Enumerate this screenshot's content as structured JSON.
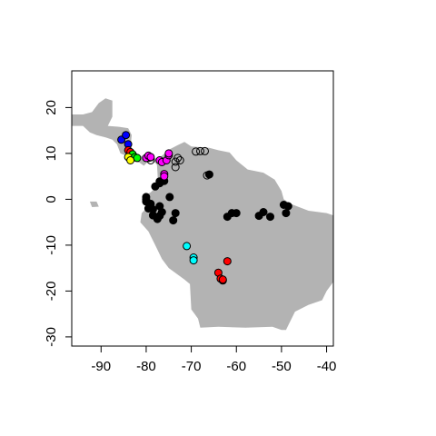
{
  "chart_data": {
    "type": "scatter",
    "title": "",
    "xlabel": "",
    "ylabel": "",
    "xlim": [
      -96.5,
      -38.5
    ],
    "ylim": [
      -32,
      28
    ],
    "x_ticks": [
      -90,
      -80,
      -70,
      -60,
      -50,
      -40
    ],
    "y_ticks": [
      -30,
      -20,
      -10,
      0,
      10,
      20
    ],
    "x_tick_labels": [
      "-90",
      "-80",
      "-70",
      "-60",
      "-50",
      "-40"
    ],
    "y_tick_labels": [
      "-30",
      "-20",
      "-10",
      "0",
      "10",
      "20"
    ],
    "grid": false,
    "legend": "none",
    "background_map_color": "#b3b3b3",
    "land_polygon": [
      [
        -96.5,
        18.5
      ],
      [
        -94,
        18.5
      ],
      [
        -92,
        19
      ],
      [
        -90.5,
        21
      ],
      [
        -89,
        22
      ],
      [
        -87.5,
        21.5
      ],
      [
        -87.5,
        18
      ],
      [
        -88.5,
        16
      ],
      [
        -86,
        15.8
      ],
      [
        -84,
        15.5
      ],
      [
        -83.2,
        14
      ],
      [
        -83.5,
        11
      ],
      [
        -82,
        9.3
      ],
      [
        -79.5,
        9.6
      ],
      [
        -77.5,
        8.8
      ],
      [
        -76.5,
        9.5
      ],
      [
        -75,
        10.8
      ],
      [
        -73,
        11.8
      ],
      [
        -71.5,
        12.5
      ],
      [
        -70,
        11.5
      ],
      [
        -66,
        11.2
      ],
      [
        -64,
        10.7
      ],
      [
        -61.5,
        10.2
      ],
      [
        -60,
        8.5
      ],
      [
        -57.5,
        6.5
      ],
      [
        -54,
        5.8
      ],
      [
        -51.5,
        4.3
      ],
      [
        -50,
        1.8
      ],
      [
        -49.5,
        0
      ],
      [
        -48,
        -1
      ],
      [
        -44,
        -2.5
      ],
      [
        -40,
        -3
      ],
      [
        -38.5,
        -3.5
      ],
      [
        -38.5,
        -18
      ],
      [
        -40,
        -20
      ],
      [
        -41,
        -22
      ],
      [
        -44,
        -23
      ],
      [
        -47,
        -24.5
      ],
      [
        -48.5,
        -27.5
      ],
      [
        -49,
        -28.5
      ],
      [
        -50,
        -28.5
      ],
      [
        -52,
        -27.8
      ],
      [
        -58,
        -28
      ],
      [
        -64,
        -27.8
      ],
      [
        -68,
        -28
      ],
      [
        -68.5,
        -26
      ],
      [
        -70,
        -24
      ],
      [
        -70.3,
        -18.5
      ],
      [
        -71.5,
        -17.5
      ],
      [
        -75,
        -15
      ],
      [
        -76.5,
        -13
      ],
      [
        -78,
        -10
      ],
      [
        -79.5,
        -7
      ],
      [
        -81.3,
        -5
      ],
      [
        -81,
        -3
      ],
      [
        -80,
        -2
      ],
      [
        -80.5,
        0
      ],
      [
        -80,
        1
      ],
      [
        -79,
        1.5
      ],
      [
        -78,
        2.5
      ],
      [
        -77.4,
        4
      ],
      [
        -77.5,
        6
      ],
      [
        -77.6,
        7.5
      ],
      [
        -78,
        8
      ],
      [
        -79.5,
        8.3
      ],
      [
        -80.5,
        7.3
      ],
      [
        -81.5,
        8
      ],
      [
        -83,
        8.3
      ],
      [
        -84,
        9.3
      ],
      [
        -85.7,
        10
      ],
      [
        -86.5,
        12
      ],
      [
        -87.5,
        13
      ],
      [
        -89,
        13.5
      ],
      [
        -91,
        14
      ],
      [
        -92.5,
        14.6
      ],
      [
        -94,
        16
      ],
      [
        -96.5,
        16
      ]
    ],
    "extra_land_patches": [
      [
        [
          -92.5,
          -0.5
        ],
        [
          -91,
          -0.5
        ],
        [
          -90.5,
          -1.6
        ],
        [
          -92,
          -1.7
        ]
      ]
    ],
    "series": [
      {
        "color": "#000000",
        "filled": true,
        "points": [
          [
            -80,
            0
          ],
          [
            -80,
            -0.5
          ],
          [
            -80,
            0.5
          ],
          [
            -79,
            -1
          ],
          [
            -79.5,
            -2
          ],
          [
            -78,
            2.8
          ],
          [
            -77,
            3.5
          ],
          [
            -77,
            3.9
          ],
          [
            -76,
            4
          ],
          [
            -74.8,
            0.5
          ],
          [
            -77,
            -1.5
          ],
          [
            -78.5,
            -2.2
          ],
          [
            -78.5,
            -3.5
          ],
          [
            -77,
            -3.6
          ],
          [
            -76.5,
            -2.8
          ],
          [
            -77.5,
            -4.3
          ],
          [
            -73.5,
            -3
          ],
          [
            -74,
            -4.6
          ],
          [
            -66,
            5.4
          ],
          [
            -62,
            -3.8
          ],
          [
            -61,
            -3
          ],
          [
            -60,
            -3
          ],
          [
            -55,
            -3.6
          ],
          [
            -54,
            -2.8
          ],
          [
            -52.5,
            -3.8
          ],
          [
            -49.5,
            -1.2
          ],
          [
            -48.5,
            -1.5
          ],
          [
            -49,
            -3
          ]
        ]
      },
      {
        "color": "#ffffff",
        "filled": false,
        "points": [
          [
            -73,
            9
          ],
          [
            -72.5,
            8.5
          ],
          [
            -73.5,
            8.2
          ],
          [
            -73.5,
            7
          ],
          [
            -69,
            10.4
          ],
          [
            -68,
            10.5
          ],
          [
            -67,
            10.5
          ],
          [
            -66.5,
            5.2
          ],
          [
            -79,
            8.5
          ],
          [
            -79.5,
            9
          ]
        ]
      },
      {
        "color": "#0000ff",
        "filled": true,
        "points": [
          [
            -85.5,
            13
          ],
          [
            -84.5,
            14
          ],
          [
            -84,
            12
          ]
        ]
      },
      {
        "color": "#ff0000",
        "filled": true,
        "points": [
          [
            -84,
            10.7
          ],
          [
            -83.5,
            10.3
          ],
          [
            -62,
            -13.5
          ],
          [
            -64,
            -16
          ],
          [
            -63.5,
            -17.3
          ],
          [
            -63,
            -17.7
          ],
          [
            -63,
            -17.5
          ]
        ]
      },
      {
        "color": "#00ff00",
        "filled": true,
        "points": [
          [
            -83,
            9.8
          ],
          [
            -82.5,
            9.2
          ],
          [
            -82,
            9
          ]
        ]
      },
      {
        "color": "#ffff00",
        "filled": true,
        "points": [
          [
            -84,
            9.2
          ],
          [
            -83.5,
            8.5
          ]
        ]
      },
      {
        "color": "#ff00ff",
        "filled": true,
        "points": [
          [
            -80,
            9
          ],
          [
            -79.5,
            9.5
          ],
          [
            -79,
            9.2
          ],
          [
            -77,
            8.5
          ],
          [
            -76.5,
            8.1
          ],
          [
            -75.5,
            8.5
          ],
          [
            -75,
            9.6
          ],
          [
            -75,
            10
          ],
          [
            -76,
            5.5
          ],
          [
            -76,
            5
          ]
        ]
      },
      {
        "color": "#00ffff",
        "filled": true,
        "points": [
          [
            -71,
            -10.2
          ],
          [
            -69.5,
            -12.7
          ],
          [
            -69.5,
            -13.3
          ]
        ]
      }
    ]
  }
}
